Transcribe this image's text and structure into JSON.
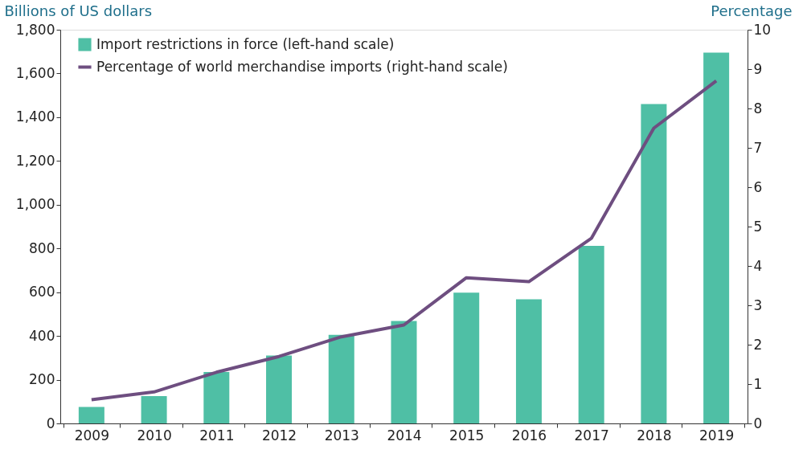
{
  "chart_data": {
    "type": "bar",
    "ylabel": "Billions of US dollars",
    "y2label": "Percentage",
    "categories": [
      "2009",
      "2010",
      "2011",
      "2012",
      "2013",
      "2014",
      "2015",
      "2016",
      "2017",
      "2018",
      "2019"
    ],
    "series": [
      {
        "name": "Import restrictions in force (left-hand scale)",
        "color": "#4fbfa5",
        "values": [
          75,
          125,
          235,
          310,
          405,
          468,
          598,
          568,
          812,
          1460,
          1695
        ]
      },
      {
        "name": "Percentage of world merchandise imports (right-hand scale)",
        "type": "line",
        "axis": "y2",
        "color": "#6e4e80",
        "values": [
          0.6,
          0.8,
          1.3,
          1.7,
          2.2,
          2.5,
          3.7,
          3.6,
          4.7,
          7.5,
          8.7
        ]
      }
    ],
    "ylim": [
      0,
      1800
    ],
    "yticks": [
      0,
      200,
      400,
      600,
      800,
      {
        "value": 1000,
        "label": "1,000"
      },
      {
        "value": 1200,
        "label": "1,200"
      },
      {
        "value": 1400,
        "label": "1,400"
      },
      {
        "value": 1600,
        "label": "1,600"
      },
      {
        "value": 1800,
        "label": "1,800"
      }
    ],
    "y2lim": [
      0,
      10
    ],
    "y2ticks": [
      0,
      1,
      2,
      3,
      4,
      5,
      6,
      7,
      8,
      9,
      10
    ],
    "grid": false,
    "legend": "top left"
  }
}
